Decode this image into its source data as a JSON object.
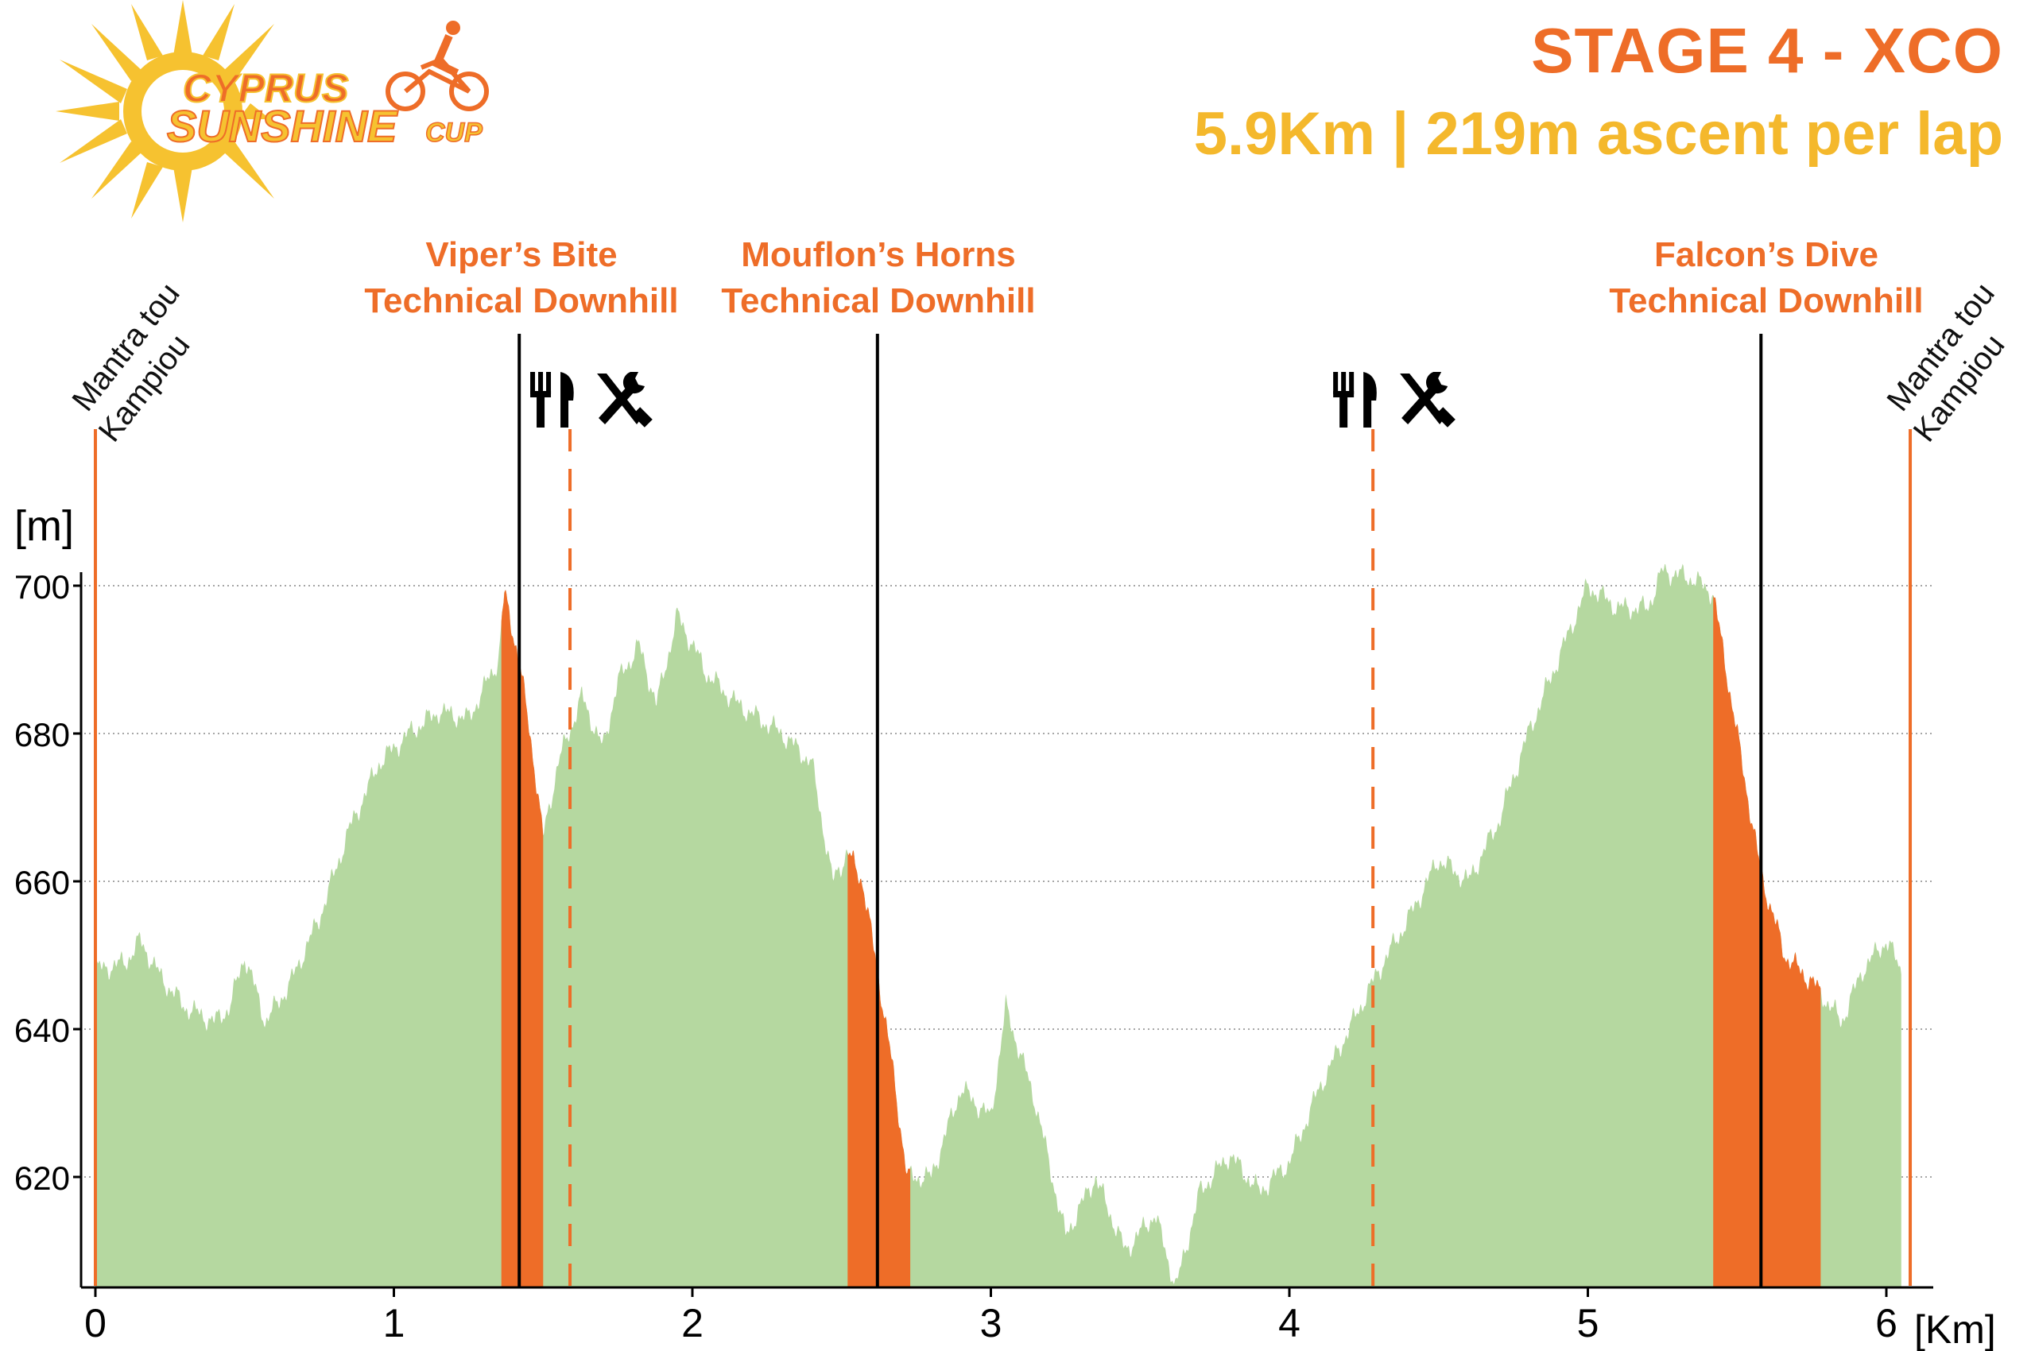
{
  "header": {
    "title": "STAGE 4 - XCO",
    "subtitle": "5.9Km | 219m ascent per lap"
  },
  "logo": {
    "line1": "CYPRUS",
    "line2": "SUNSHINE",
    "line3": "CUP"
  },
  "colors": {
    "profile_fill": "#B5D8A0",
    "downhill_fill": "#EE6D28",
    "orange_text": "#EE6D28",
    "yellow_text": "#F4B82C",
    "marker_line": "#000000",
    "grid": "#888888"
  },
  "chart_data": {
    "type": "area",
    "xlabel": "[Km]",
    "ylabel": "[m]",
    "xlim": [
      0,
      6.05
    ],
    "ylim": [
      605,
      700
    ],
    "x_ticks": [
      0,
      1,
      2,
      3,
      4,
      5,
      6
    ],
    "y_ticks": [
      620,
      640,
      660,
      680,
      700
    ],
    "grid": "horizontal-dotted",
    "profile": [
      [
        0.0,
        648
      ],
      [
        0.1,
        649
      ],
      [
        0.15,
        652
      ],
      [
        0.22,
        647
      ],
      [
        0.3,
        643
      ],
      [
        0.4,
        641
      ],
      [
        0.45,
        643
      ],
      [
        0.5,
        650
      ],
      [
        0.57,
        641
      ],
      [
        0.65,
        646
      ],
      [
        0.75,
        655
      ],
      [
        0.85,
        667
      ],
      [
        0.95,
        676
      ],
      [
        1.05,
        680
      ],
      [
        1.15,
        683
      ],
      [
        1.25,
        682
      ],
      [
        1.35,
        690
      ],
      [
        1.37,
        699
      ],
      [
        1.42,
        690
      ],
      [
        1.47,
        676
      ],
      [
        1.5,
        666
      ],
      [
        1.55,
        676
      ],
      [
        1.63,
        685
      ],
      [
        1.7,
        678
      ],
      [
        1.75,
        687
      ],
      [
        1.82,
        692
      ],
      [
        1.88,
        684
      ],
      [
        1.95,
        696
      ],
      [
        2.05,
        688
      ],
      [
        2.15,
        684
      ],
      [
        2.3,
        680
      ],
      [
        2.4,
        676
      ],
      [
        2.47,
        660
      ],
      [
        2.52,
        664
      ],
      [
        2.57,
        660
      ],
      [
        2.62,
        648
      ],
      [
        2.67,
        635
      ],
      [
        2.72,
        620
      ],
      [
        2.8,
        620
      ],
      [
        2.9,
        632
      ],
      [
        3.0,
        628
      ],
      [
        3.05,
        643
      ],
      [
        3.15,
        630
      ],
      [
        3.25,
        612
      ],
      [
        3.35,
        620
      ],
      [
        3.45,
        610
      ],
      [
        3.55,
        615
      ],
      [
        3.62,
        605
      ],
      [
        3.7,
        618
      ],
      [
        3.8,
        623
      ],
      [
        3.9,
        618
      ],
      [
        4.0,
        622
      ],
      [
        4.1,
        632
      ],
      [
        4.2,
        640
      ],
      [
        4.3,
        648
      ],
      [
        4.4,
        655
      ],
      [
        4.5,
        663
      ],
      [
        4.6,
        660
      ],
      [
        4.7,
        668
      ],
      [
        4.8,
        680
      ],
      [
        4.9,
        690
      ],
      [
        5.0,
        700
      ],
      [
        5.1,
        697
      ],
      [
        5.2,
        697
      ],
      [
        5.25,
        702
      ],
      [
        5.35,
        701
      ],
      [
        5.42,
        699
      ],
      [
        5.5,
        680
      ],
      [
        5.58,
        661
      ],
      [
        5.66,
        650
      ],
      [
        5.76,
        646
      ],
      [
        5.85,
        641
      ],
      [
        5.92,
        648
      ],
      [
        6.0,
        652
      ],
      [
        6.05,
        648
      ]
    ],
    "downhill_sections": [
      [
        1.36,
        1.5
      ],
      [
        2.52,
        2.73
      ],
      [
        5.42,
        5.78
      ]
    ],
    "markers": {
      "start_finish": [
        {
          "x": 0.0,
          "label_line1": "Mantra tou",
          "label_line2": "Kampiou"
        },
        {
          "x": 6.08,
          "label_line1": "Mantra tou",
          "label_line2": "Kampiou"
        }
      ],
      "technical_downhills": [
        {
          "x": 1.42,
          "name": "Viper’s Bite",
          "subtitle": "Technical Downhill"
        },
        {
          "x": 2.62,
          "name": "Mouflon’s Horns",
          "subtitle": "Technical Downhill"
        },
        {
          "x": 5.58,
          "name": "Falcon’s Dive",
          "subtitle": "Technical Downhill"
        }
      ],
      "feed_zones": [
        {
          "x": 1.59,
          "icons": [
            "fork-knife-icon",
            "wrench-screwdriver-icon"
          ]
        },
        {
          "x": 4.28,
          "icons": [
            "fork-knife-icon",
            "wrench-screwdriver-icon"
          ]
        }
      ]
    }
  }
}
